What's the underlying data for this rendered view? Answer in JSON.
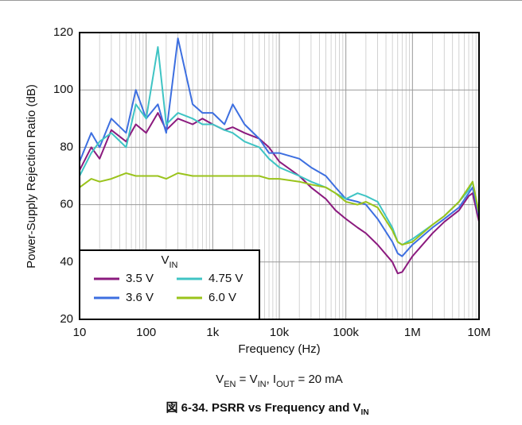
{
  "chart_data": {
    "type": "line",
    "xlabel": "Frequency (Hz)",
    "ylabel": "Power-Supply Rejection Ratio (dB)",
    "caption": [
      "V",
      "EN",
      " = V",
      "IN",
      ", I",
      "OUT",
      " = 20 mA"
    ],
    "figure_title": [
      "図 6-34. PSRR vs Frequency and V",
      "IN"
    ],
    "legend_title": [
      "V",
      "IN"
    ],
    "log_x": true,
    "grid": true,
    "minor_grid": true,
    "legend_position": "lower left",
    "xlim": [
      10,
      10000000
    ],
    "xticks": [
      10,
      100,
      {
        "value": 1000,
        "label": "1k"
      },
      {
        "value": 10000,
        "label": "10k"
      },
      {
        "value": 100000,
        "label": "100k"
      },
      {
        "value": 1000000,
        "label": "1M"
      },
      {
        "value": 10000000,
        "label": "10M"
      }
    ],
    "ylim": [
      20,
      120
    ],
    "yticks": [
      20,
      40,
      60,
      80,
      100,
      120
    ],
    "x": [
      10,
      15,
      20,
      30,
      50,
      70,
      100,
      150,
      200,
      300,
      500,
      700,
      1000,
      1500,
      2000,
      3000,
      5000,
      7000,
      10000,
      20000,
      30000,
      50000,
      70000,
      100000,
      150000,
      200000,
      300000,
      500000,
      600000,
      700000,
      1000000,
      2000000,
      3000000,
      5000000,
      7000000,
      8000000,
      10000000
    ],
    "series": [
      {
        "name": "3.5 V",
        "color": "#8b1a7e",
        "values": [
          72,
          80,
          76,
          86,
          82,
          88,
          85,
          92,
          86,
          90,
          88,
          90,
          88,
          86,
          87,
          85,
          83,
          80,
          75,
          70,
          66,
          62,
          58,
          55,
          52,
          50,
          46,
          40,
          36,
          36.5,
          42,
          50,
          54,
          58,
          63,
          64,
          54
        ]
      },
      {
        "name": "3.6 V",
        "color": "#3d6fe0",
        "values": [
          75,
          85,
          80,
          90,
          85,
          100,
          90,
          95,
          85,
          118,
          95,
          92,
          92,
          88,
          95,
          88,
          83,
          78,
          78,
          76,
          73,
          70,
          66,
          62,
          61,
          60,
          55,
          47,
          43,
          42,
          46,
          52,
          55,
          59,
          64,
          66,
          56
        ]
      },
      {
        "name": "4.75 V",
        "color": "#3fc4c4",
        "values": [
          70,
          78,
          82,
          85,
          80,
          95,
          90,
          115,
          88,
          92,
          90,
          88,
          88,
          86,
          85,
          82,
          80,
          76,
          73,
          70,
          68,
          66,
          64,
          62,
          64,
          63,
          61,
          52,
          47,
          46,
          48,
          53,
          56,
          61,
          65,
          68,
          57
        ]
      },
      {
        "name": "6.0 V",
        "color": "#9ac31b",
        "values": [
          66,
          69,
          68,
          69,
          71,
          70,
          70,
          70,
          69,
          71,
          70,
          70,
          70,
          70,
          70,
          70,
          70,
          69,
          69,
          68,
          67,
          66,
          64,
          61,
          60,
          61,
          59,
          51,
          47,
          46,
          47,
          53,
          56,
          61,
          66,
          68,
          57
        ]
      }
    ]
  }
}
